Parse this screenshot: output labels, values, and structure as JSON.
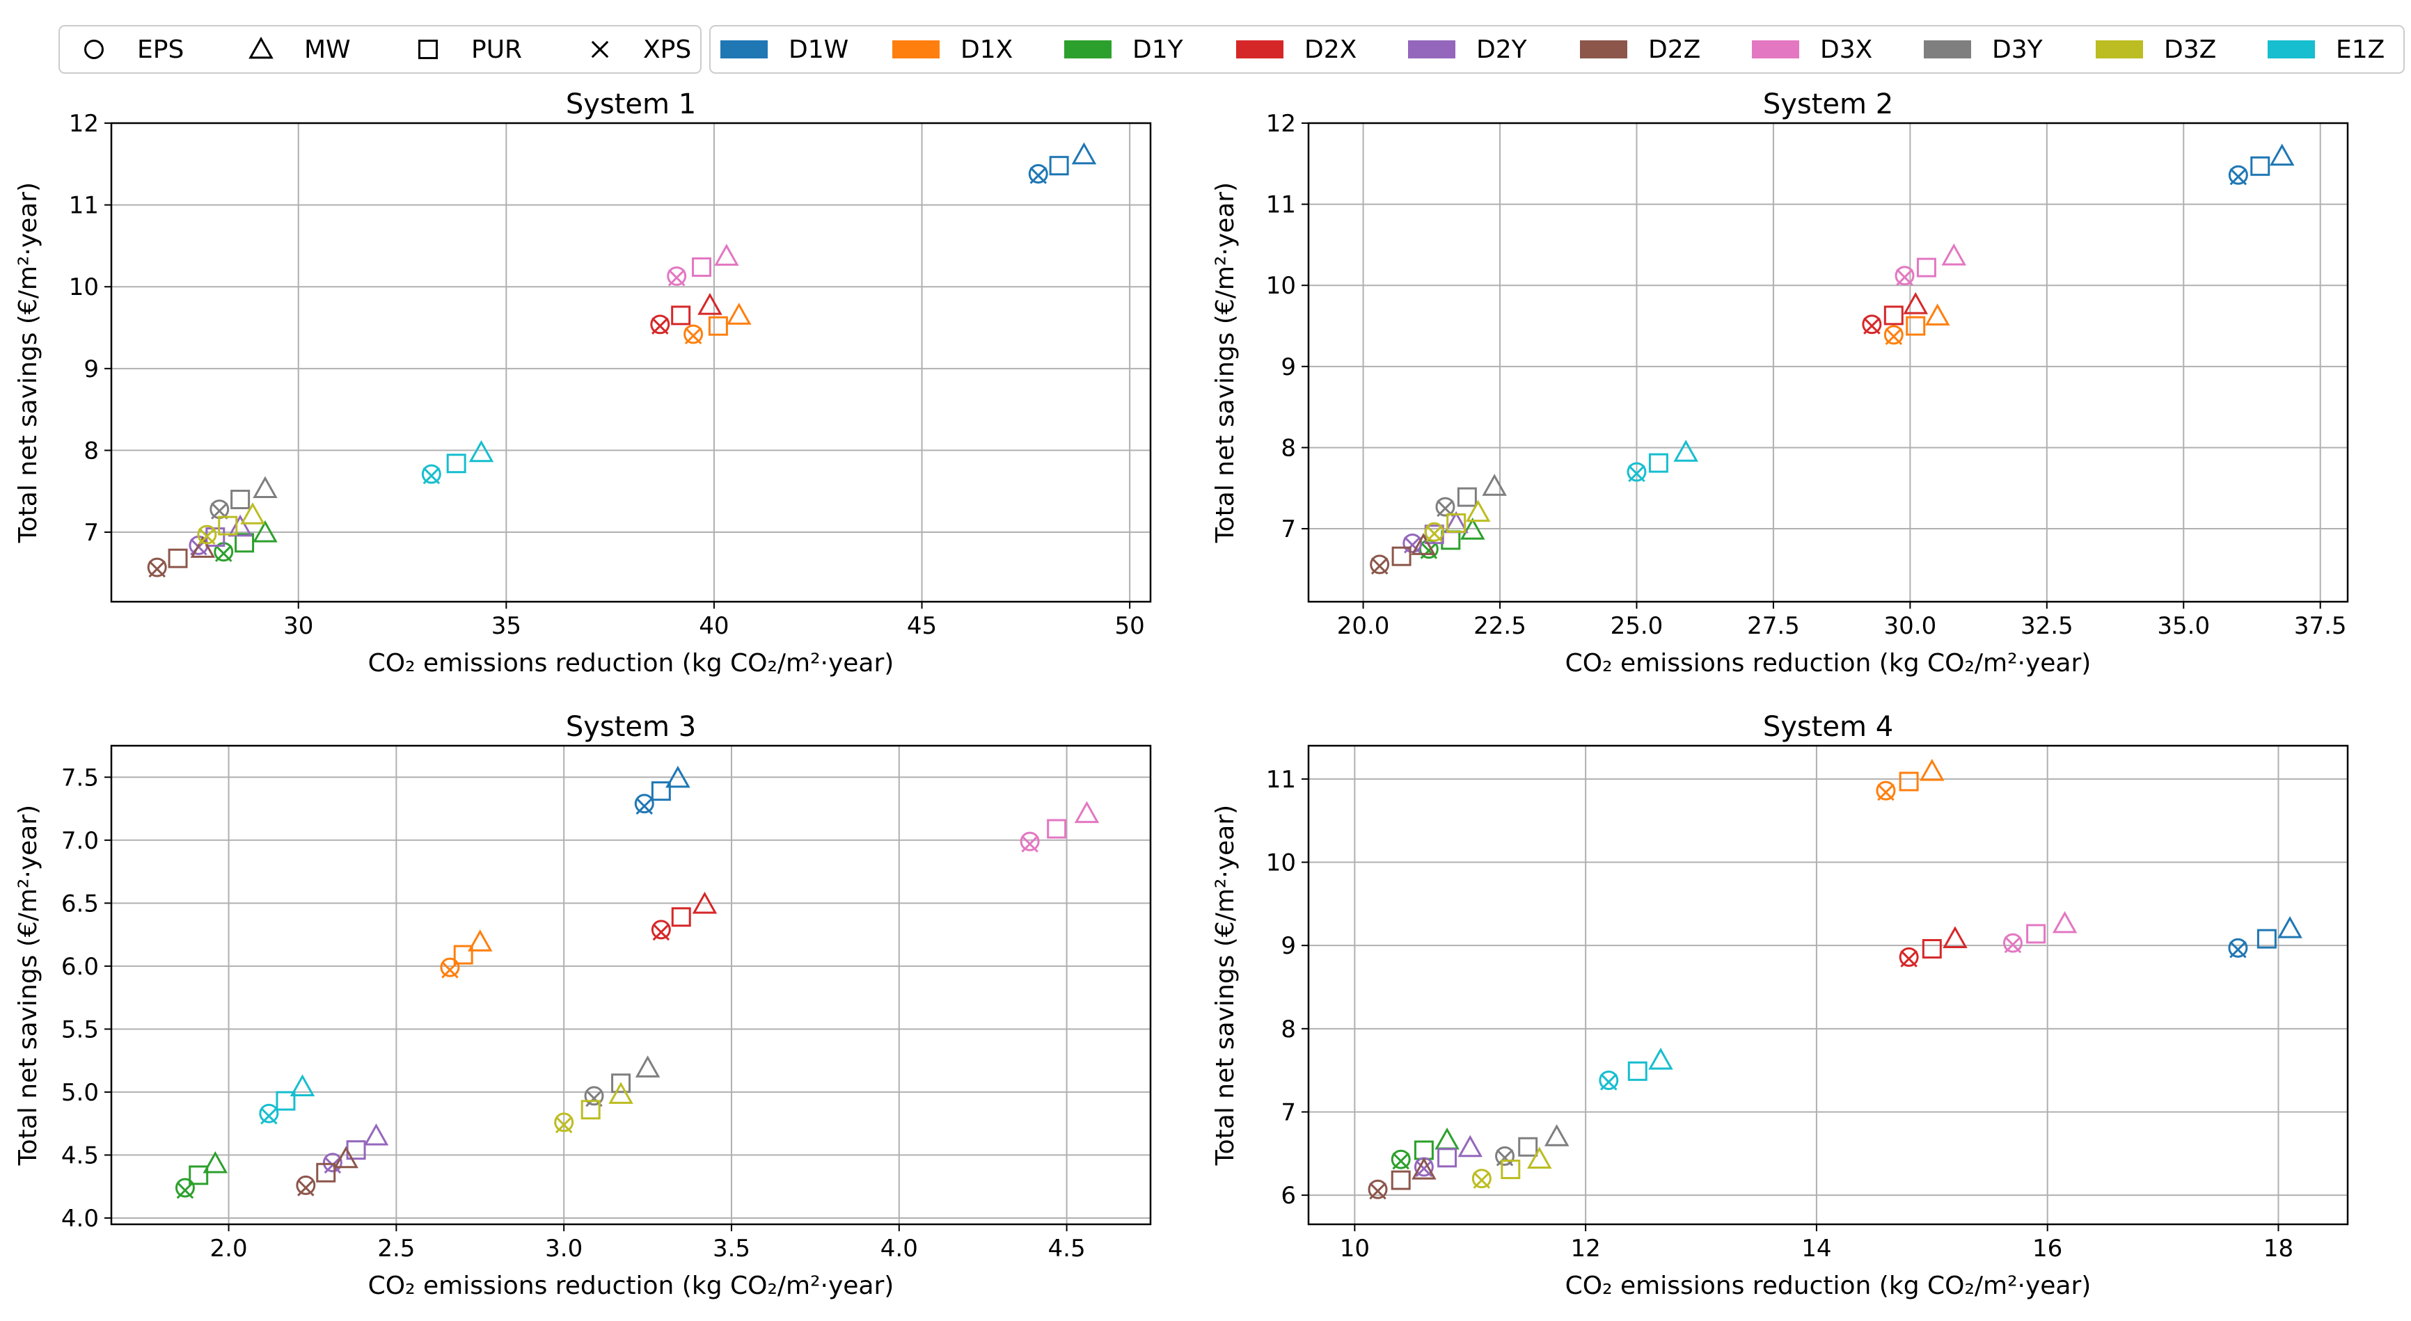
{
  "chart_data": {
    "type": "scatter",
    "ylabel": "Total net savings (€/m²·year)",
    "xlabel": "CO₂ emissions reduction (kg CO₂/m²·year)",
    "legend_markers": [
      {
        "name": "EPS",
        "marker": "circle"
      },
      {
        "name": "MW",
        "marker": "triangle"
      },
      {
        "name": "PUR",
        "marker": "square"
      },
      {
        "name": "XPS",
        "marker": "x"
      }
    ],
    "legend_colors": [
      {
        "name": "D1W",
        "color": "#1f77b4"
      },
      {
        "name": "D1X",
        "color": "#ff7f0e"
      },
      {
        "name": "D1Y",
        "color": "#2ca02c"
      },
      {
        "name": "D2X",
        "color": "#d62728"
      },
      {
        "name": "D2Y",
        "color": "#9467bd"
      },
      {
        "name": "D2Z",
        "color": "#8c564b"
      },
      {
        "name": "D3X",
        "color": "#e377c2"
      },
      {
        "name": "D3Y",
        "color": "#7f7f7f"
      },
      {
        "name": "D3Z",
        "color": "#bcbd22"
      },
      {
        "name": "E1Z",
        "color": "#17becf"
      }
    ],
    "panels": [
      {
        "title": "System 1",
        "xlim": [
          25.5,
          50.5
        ],
        "ylim": [
          6.15,
          12.0
        ],
        "xticks": [
          30,
          35,
          40,
          45,
          50
        ],
        "yticks": [
          7,
          8,
          9,
          10,
          11,
          12
        ],
        "points": {
          "D1W": {
            "EPS": [
              47.8,
              11.38
            ],
            "XPS": [
              47.8,
              11.36
            ],
            "PUR": [
              48.3,
              11.48
            ],
            "MW": [
              48.9,
              11.61
            ]
          },
          "D1X": {
            "EPS": [
              39.5,
              9.42
            ],
            "XPS": [
              39.5,
              9.4
            ],
            "PUR": [
              40.1,
              9.52
            ],
            "MW": [
              40.6,
              9.65
            ]
          },
          "D1Y": {
            "EPS": [
              28.2,
              6.76
            ],
            "XPS": [
              28.2,
              6.74
            ],
            "PUR": [
              28.7,
              6.87
            ],
            "MW": [
              29.2,
              6.99
            ]
          },
          "D2X": {
            "EPS": [
              38.7,
              9.54
            ],
            "XPS": [
              38.7,
              9.52
            ],
            "PUR": [
              39.2,
              9.65
            ],
            "MW": [
              39.9,
              9.77
            ]
          },
          "D2Y": {
            "EPS": [
              27.6,
              6.84
            ],
            "XPS": [
              27.6,
              6.82
            ],
            "PUR": [
              28.0,
              6.94
            ],
            "MW": [
              28.6,
              7.06
            ]
          },
          "D2Z": {
            "EPS": [
              26.6,
              6.57
            ],
            "XPS": [
              26.6,
              6.55
            ],
            "PUR": [
              27.1,
              6.68
            ],
            "MW": [
              27.7,
              6.8
            ]
          },
          "D3X": {
            "EPS": [
              39.1,
              10.13
            ],
            "XPS": [
              39.1,
              10.11
            ],
            "PUR": [
              39.7,
              10.24
            ],
            "MW": [
              40.3,
              10.37
            ]
          },
          "D3Y": {
            "EPS": [
              28.1,
              7.28
            ],
            "XPS": [
              28.1,
              7.26
            ],
            "PUR": [
              28.6,
              7.4
            ],
            "MW": [
              29.2,
              7.53
            ]
          },
          "D3Z": {
            "EPS": [
              27.8,
              6.97
            ],
            "XPS": [
              27.8,
              6.95
            ],
            "PUR": [
              28.3,
              7.08
            ],
            "MW": [
              28.9,
              7.21
            ]
          },
          "E1Z": {
            "EPS": [
              33.2,
              7.71
            ],
            "XPS": [
              33.2,
              7.69
            ],
            "PUR": [
              33.8,
              7.84
            ],
            "MW": [
              34.4,
              7.97
            ]
          }
        }
      },
      {
        "title": "System 2",
        "xlim": [
          19.0,
          38.0
        ],
        "ylim": [
          6.1,
          12.0
        ],
        "xticks": [
          20.0,
          22.5,
          25.0,
          27.5,
          30.0,
          32.5,
          35.0,
          37.5
        ],
        "yticks": [
          7,
          8,
          9,
          10,
          11,
          12
        ],
        "points": {
          "D1W": {
            "EPS": [
              36.0,
              11.36
            ],
            "XPS": [
              36.0,
              11.34
            ],
            "PUR": [
              36.4,
              11.47
            ],
            "MW": [
              36.8,
              11.59
            ]
          },
          "D1X": {
            "EPS": [
              29.7,
              9.39
            ],
            "XPS": [
              29.7,
              9.37
            ],
            "PUR": [
              30.1,
              9.5
            ],
            "MW": [
              30.5,
              9.62
            ]
          },
          "D1Y": {
            "EPS": [
              21.2,
              6.75
            ],
            "XPS": [
              21.2,
              6.73
            ],
            "PUR": [
              21.6,
              6.86
            ],
            "MW": [
              22.0,
              6.98
            ]
          },
          "D2X": {
            "EPS": [
              29.3,
              9.52
            ],
            "XPS": [
              29.3,
              9.5
            ],
            "PUR": [
              29.7,
              9.63
            ],
            "MW": [
              30.1,
              9.76
            ]
          },
          "D2Y": {
            "EPS": [
              20.9,
              6.82
            ],
            "XPS": [
              20.9,
              6.8
            ],
            "PUR": [
              21.3,
              6.93
            ],
            "MW": [
              21.7,
              7.06
            ]
          },
          "D2Z": {
            "EPS": [
              20.3,
              6.56
            ],
            "XPS": [
              20.3,
              6.54
            ],
            "PUR": [
              20.7,
              6.66
            ],
            "MW": [
              21.1,
              6.79
            ]
          },
          "D3X": {
            "EPS": [
              29.9,
              10.12
            ],
            "XPS": [
              29.9,
              10.1
            ],
            "PUR": [
              30.3,
              10.22
            ],
            "MW": [
              30.8,
              10.36
            ]
          },
          "D3Y": {
            "EPS": [
              21.5,
              7.27
            ],
            "XPS": [
              21.5,
              7.25
            ],
            "PUR": [
              21.9,
              7.39
            ],
            "MW": [
              22.4,
              7.52
            ]
          },
          "D3Z": {
            "EPS": [
              21.3,
              6.96
            ],
            "XPS": [
              21.3,
              6.94
            ],
            "PUR": [
              21.7,
              7.07
            ],
            "MW": [
              22.1,
              7.2
            ]
          },
          "E1Z": {
            "EPS": [
              25.0,
              7.7
            ],
            "XPS": [
              25.0,
              7.68
            ],
            "PUR": [
              25.4,
              7.81
            ],
            "MW": [
              25.9,
              7.94
            ]
          }
        }
      },
      {
        "title": "System 3",
        "xlim": [
          1.65,
          4.75
        ],
        "ylim": [
          3.95,
          7.75
        ],
        "xticks": [
          2.0,
          2.5,
          3.0,
          3.5,
          4.0,
          4.5
        ],
        "yticks": [
          4.0,
          4.5,
          5.0,
          5.5,
          6.0,
          6.5,
          7.0,
          7.5
        ],
        "points": {
          "D1W": {
            "EPS": [
              3.24,
              7.29
            ],
            "XPS": [
              3.24,
              7.27
            ],
            "PUR": [
              3.29,
              7.39
            ],
            "MW": [
              3.34,
              7.49
            ]
          },
          "D1X": {
            "EPS": [
              2.66,
              5.99
            ],
            "XPS": [
              2.66,
              5.97
            ],
            "PUR": [
              2.7,
              6.09
            ],
            "MW": [
              2.75,
              6.19
            ]
          },
          "D1Y": {
            "EPS": [
              1.87,
              4.24
            ],
            "XPS": [
              1.87,
              4.22
            ],
            "PUR": [
              1.91,
              4.34
            ],
            "MW": [
              1.96,
              4.43
            ]
          },
          "D2X": {
            "EPS": [
              3.29,
              6.29
            ],
            "XPS": [
              3.29,
              6.27
            ],
            "PUR": [
              3.35,
              6.39
            ],
            "MW": [
              3.42,
              6.49
            ]
          },
          "D2Y": {
            "EPS": [
              2.31,
              4.44
            ],
            "XPS": [
              2.31,
              4.42
            ],
            "PUR": [
              2.38,
              4.54
            ],
            "MW": [
              2.44,
              4.65
            ]
          },
          "D2Z": {
            "EPS": [
              2.23,
              4.26
            ],
            "XPS": [
              2.23,
              4.24
            ],
            "PUR": [
              2.29,
              4.36
            ],
            "MW": [
              2.35,
              4.47
            ]
          },
          "D3X": {
            "EPS": [
              4.39,
              6.99
            ],
            "XPS": [
              4.39,
              6.97
            ],
            "PUR": [
              4.47,
              7.09
            ],
            "MW": [
              4.56,
              7.21
            ]
          },
          "D3Y": {
            "EPS": [
              3.09,
              4.97
            ],
            "XPS": [
              3.09,
              4.95
            ],
            "PUR": [
              3.17,
              5.07
            ],
            "MW": [
              3.25,
              5.19
            ]
          },
          "D3Z": {
            "EPS": [
              3.0,
              4.76
            ],
            "XPS": [
              3.0,
              4.74
            ],
            "PUR": [
              3.08,
              4.86
            ],
            "MW": [
              3.17,
              4.98
            ]
          },
          "E1Z": {
            "EPS": [
              2.12,
              4.83
            ],
            "XPS": [
              2.12,
              4.81
            ],
            "PUR": [
              2.17,
              4.93
            ],
            "MW": [
              2.22,
              5.04
            ]
          }
        }
      },
      {
        "title": "System 4",
        "xlim": [
          9.6,
          18.6
        ],
        "ylim": [
          5.65,
          11.4
        ],
        "xticks": [
          10,
          12,
          14,
          16,
          18
        ],
        "yticks": [
          6,
          7,
          8,
          9,
          10,
          11
        ],
        "points": {
          "D1W": {
            "EPS": [
              17.65,
              8.97
            ],
            "XPS": [
              17.65,
              8.95
            ],
            "PUR": [
              17.9,
              9.08
            ],
            "MW": [
              18.1,
              9.2
            ]
          },
          "D1X": {
            "EPS": [
              14.6,
              10.86
            ],
            "XPS": [
              14.6,
              10.84
            ],
            "PUR": [
              14.8,
              10.97
            ],
            "MW": [
              15.0,
              11.09
            ]
          },
          "D1Y": {
            "EPS": [
              10.4,
              6.43
            ],
            "XPS": [
              10.4,
              6.41
            ],
            "PUR": [
              10.6,
              6.54
            ],
            "MW": [
              10.8,
              6.66
            ]
          },
          "D2X": {
            "EPS": [
              14.8,
              8.86
            ],
            "XPS": [
              14.8,
              8.84
            ],
            "PUR": [
              15.0,
              8.96
            ],
            "MW": [
              15.2,
              9.08
            ]
          },
          "D2Y": {
            "EPS": [
              10.6,
              6.34
            ],
            "XPS": [
              10.6,
              6.32
            ],
            "PUR": [
              10.8,
              6.45
            ],
            "MW": [
              11.0,
              6.57
            ]
          },
          "D2Z": {
            "EPS": [
              10.2,
              6.07
            ],
            "XPS": [
              10.2,
              6.05
            ],
            "PUR": [
              10.4,
              6.18
            ],
            "MW": [
              10.6,
              6.3
            ]
          },
          "D3X": {
            "EPS": [
              15.7,
              9.03
            ],
            "XPS": [
              15.7,
              9.01
            ],
            "PUR": [
              15.9,
              9.14
            ],
            "MW": [
              16.15,
              9.26
            ]
          },
          "D3Y": {
            "EPS": [
              11.3,
              6.47
            ],
            "XPS": [
              11.3,
              6.45
            ],
            "PUR": [
              11.5,
              6.58
            ],
            "MW": [
              11.75,
              6.7
            ]
          },
          "D3Z": {
            "EPS": [
              11.1,
              6.2
            ],
            "XPS": [
              11.1,
              6.18
            ],
            "PUR": [
              11.35,
              6.31
            ],
            "MW": [
              11.6,
              6.43
            ]
          },
          "E1Z": {
            "EPS": [
              12.2,
              7.38
            ],
            "XPS": [
              12.2,
              7.36
            ],
            "PUR": [
              12.45,
              7.49
            ],
            "MW": [
              12.65,
              7.62
            ]
          }
        }
      }
    ]
  }
}
